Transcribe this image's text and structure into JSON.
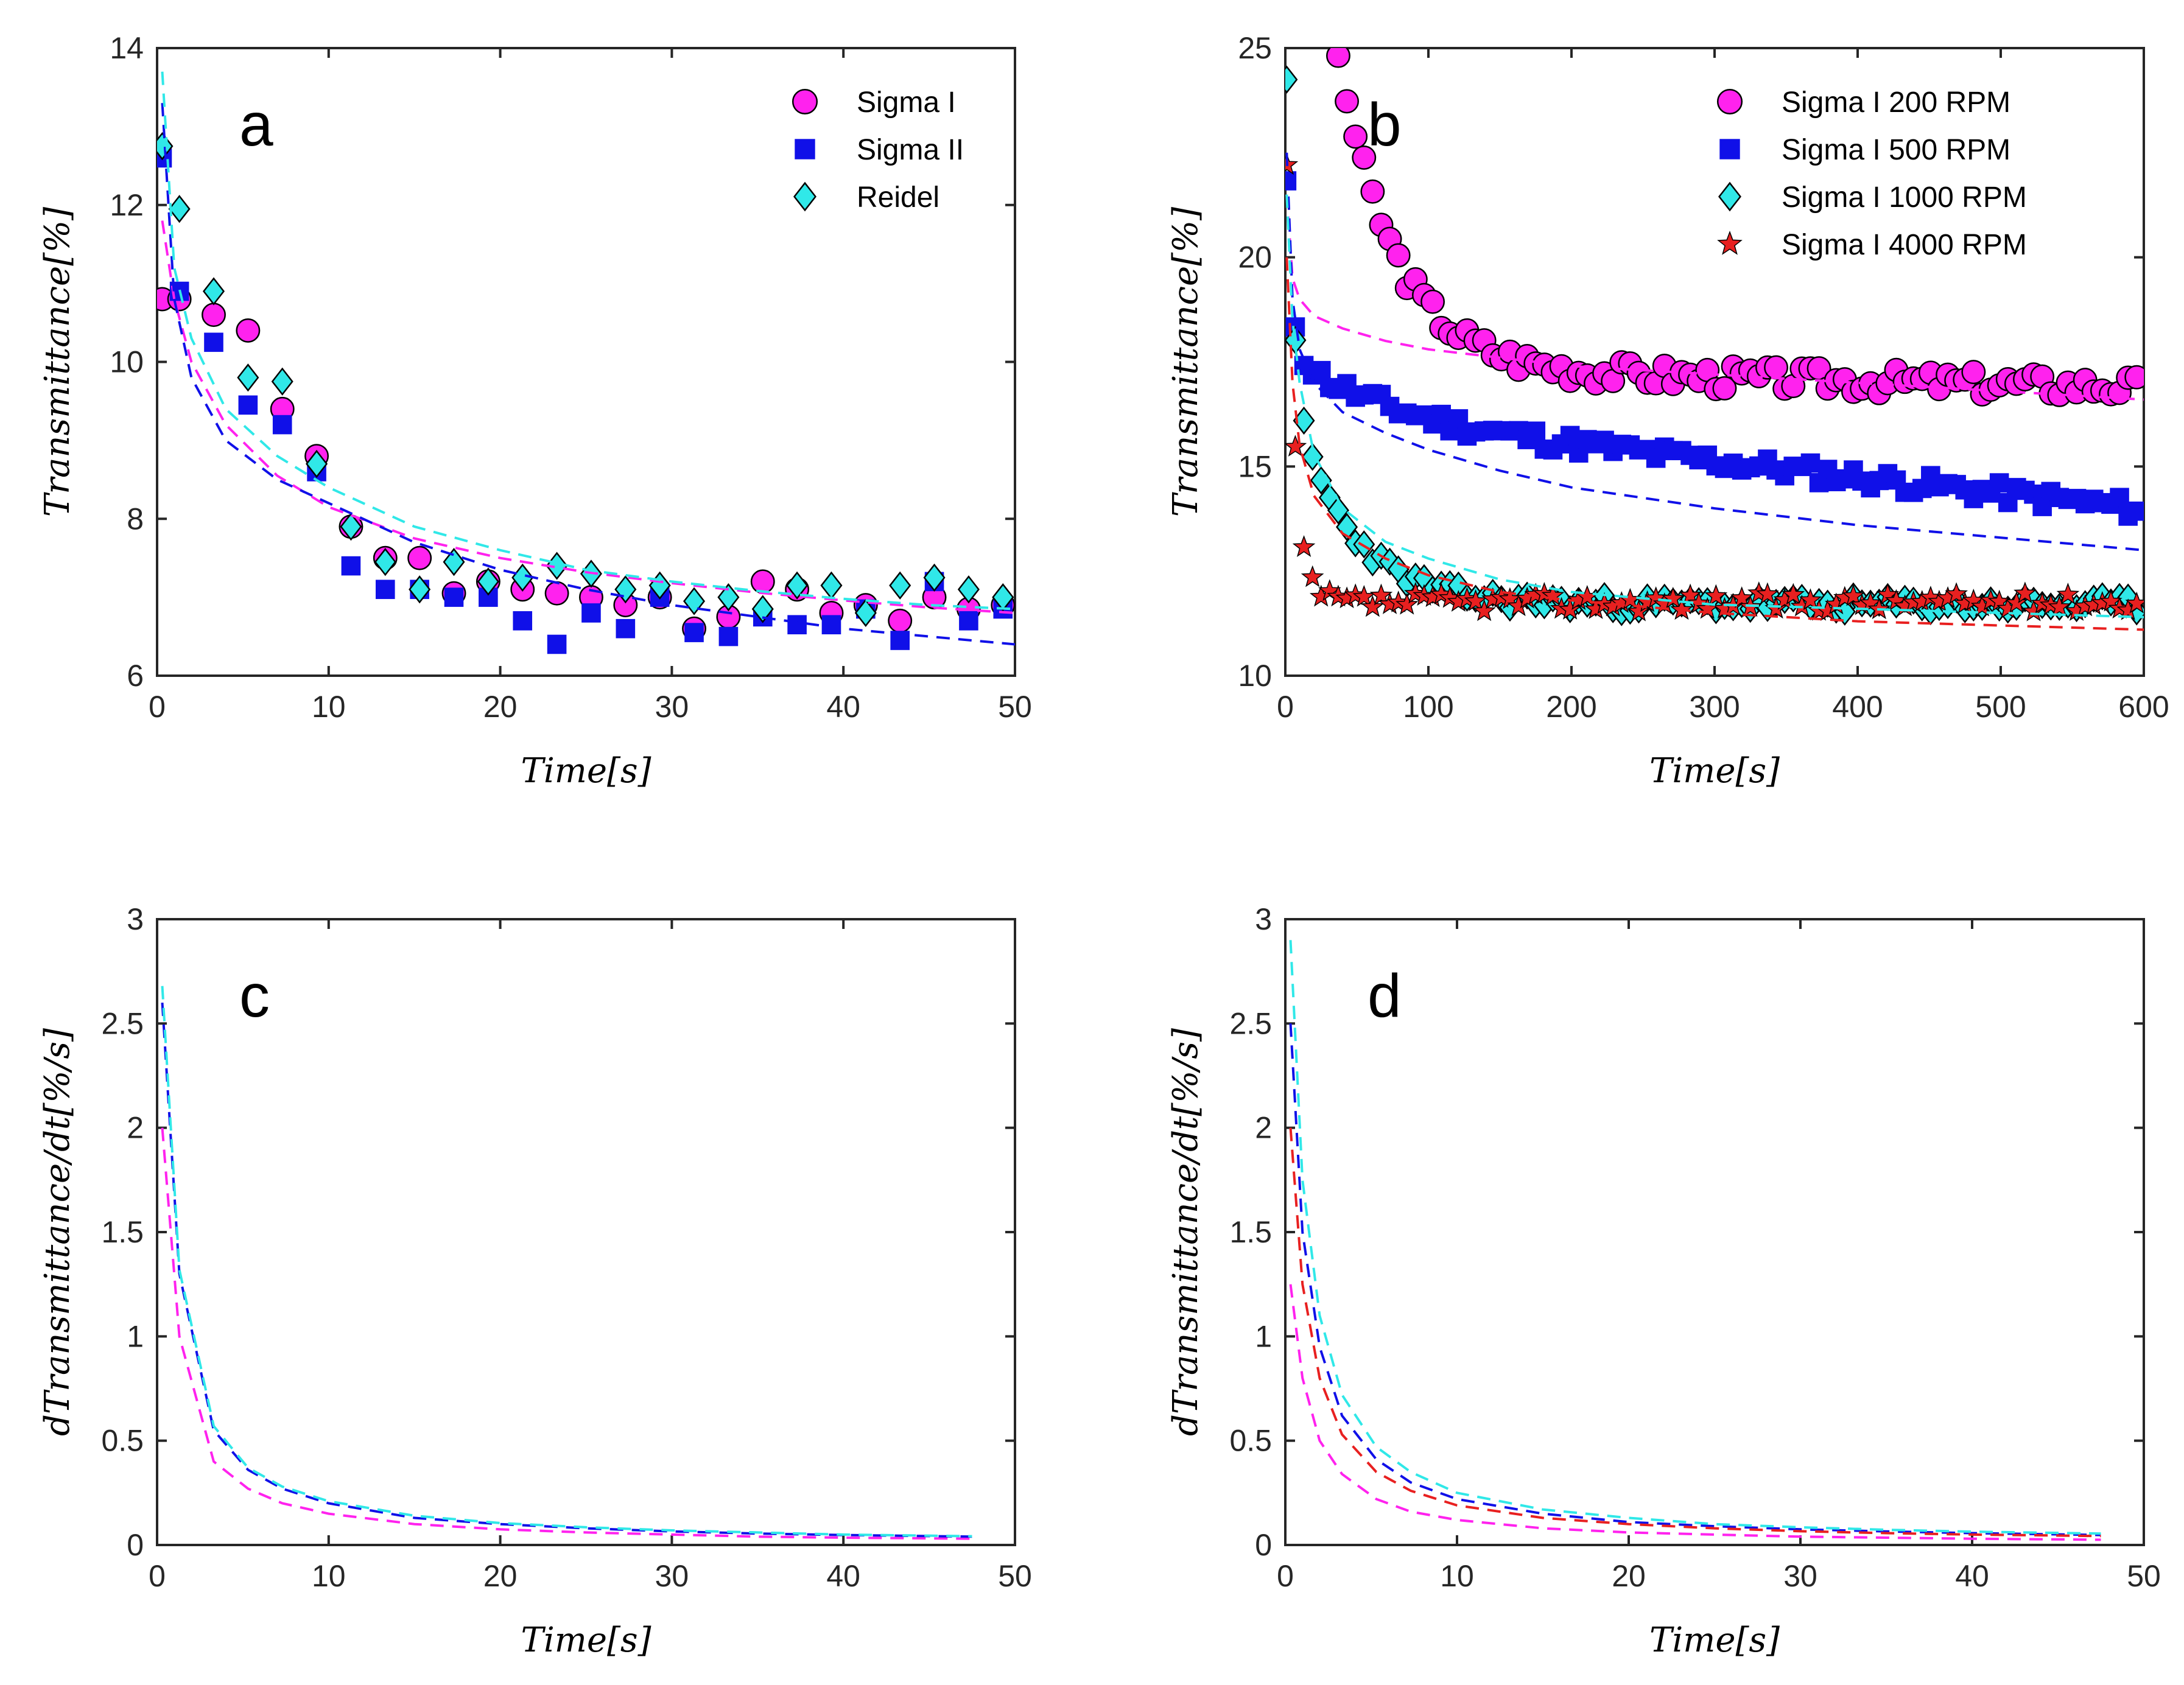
{
  "colors": {
    "magenta": "#ff22ee",
    "blue": "#1010e8",
    "cyan": "#30e8e8",
    "red": "#e82020",
    "axis": "#262626"
  },
  "chart_data": [
    {
      "panel": "a",
      "type": "scatter",
      "xlabel": "Time[s]",
      "ylabel": "Transmittance[%]",
      "xlim": [
        0,
        50
      ],
      "ylim": [
        6,
        14
      ],
      "xticks": [
        0,
        10,
        20,
        30,
        40,
        50
      ],
      "yticks": [
        6,
        8,
        10,
        12,
        14
      ],
      "legend_position": "top-right",
      "series": [
        {
          "name": "Sigma I",
          "marker": "circle",
          "color": "#ff22ee",
          "x": [
            0.3,
            1.3,
            3.3,
            5.3,
            7.3,
            9.3,
            11.3,
            13.3,
            15.3,
            17.3,
            19.3,
            21.3,
            23.3,
            25.3,
            27.3,
            29.3,
            31.3,
            33.3,
            35.3,
            37.3,
            39.3,
            41.3,
            43.3,
            45.3,
            47.3,
            49.3
          ],
          "y": [
            10.8,
            10.8,
            10.6,
            10.4,
            9.4,
            8.8,
            7.9,
            7.5,
            7.5,
            7.05,
            7.2,
            7.1,
            7.05,
            7.0,
            6.9,
            7.0,
            6.6,
            6.75,
            7.2,
            7.1,
            6.8,
            6.9,
            6.7,
            7.0,
            6.85,
            6.9
          ]
        },
        {
          "name": "Sigma II",
          "marker": "square",
          "color": "#1010e8",
          "x": [
            0.3,
            1.3,
            3.3,
            5.3,
            7.3,
            9.3,
            11.3,
            13.3,
            15.3,
            17.3,
            19.3,
            21.3,
            23.3,
            25.3,
            27.3,
            29.3,
            31.3,
            33.3,
            35.3,
            37.3,
            39.3,
            41.3,
            43.3,
            45.3,
            47.3,
            49.3
          ],
          "y": [
            12.6,
            10.9,
            10.25,
            9.45,
            9.2,
            8.6,
            7.4,
            7.1,
            7.1,
            7.0,
            7.0,
            6.7,
            6.4,
            6.8,
            6.6,
            7.0,
            6.55,
            6.5,
            6.75,
            6.65,
            6.65,
            6.85,
            6.45,
            7.2,
            6.7,
            6.85
          ]
        },
        {
          "name": "Reidel",
          "marker": "diamond",
          "color": "#30e8e8",
          "x": [
            0.3,
            1.3,
            3.3,
            5.3,
            7.3,
            9.3,
            11.3,
            13.3,
            15.3,
            17.3,
            19.3,
            21.3,
            23.3,
            25.3,
            27.3,
            29.3,
            31.3,
            33.3,
            35.3,
            37.3,
            39.3,
            41.3,
            43.3,
            45.3,
            47.3,
            49.3
          ],
          "y": [
            12.75,
            11.95,
            10.9,
            9.8,
            9.75,
            8.7,
            7.9,
            7.45,
            7.1,
            7.45,
            7.2,
            7.25,
            7.4,
            7.3,
            7.1,
            7.15,
            6.95,
            7.0,
            6.85,
            7.15,
            7.15,
            6.8,
            7.15,
            7.25,
            7.1,
            7.0
          ]
        }
      ],
      "fit_lines": [
        {
          "name": "Sigma I fit",
          "color": "#ff22ee",
          "x": [
            0.3,
            1,
            2,
            4,
            7,
            10,
            15,
            20,
            25,
            30,
            35,
            40,
            45,
            50
          ],
          "y": [
            11.8,
            10.8,
            10.0,
            9.2,
            8.55,
            8.15,
            7.75,
            7.5,
            7.32,
            7.18,
            7.06,
            6.96,
            6.87,
            6.8
          ]
        },
        {
          "name": "Sigma II fit",
          "color": "#1010e8",
          "x": [
            0.3,
            1,
            2,
            4,
            7,
            10,
            15,
            20,
            25,
            30,
            35,
            40,
            45,
            50
          ],
          "y": [
            13.3,
            10.8,
            9.8,
            9.0,
            8.5,
            8.2,
            7.7,
            7.35,
            7.1,
            6.9,
            6.75,
            6.6,
            6.5,
            6.4
          ]
        },
        {
          "name": "Reidel fit",
          "color": "#30e8e8",
          "x": [
            0.3,
            1,
            2,
            4,
            7,
            10,
            15,
            20,
            25,
            30,
            35,
            40,
            45,
            50
          ],
          "y": [
            13.7,
            11.2,
            10.3,
            9.4,
            8.8,
            8.4,
            7.9,
            7.6,
            7.35,
            7.2,
            7.08,
            6.98,
            6.9,
            6.85
          ]
        }
      ]
    },
    {
      "panel": "b",
      "type": "scatter",
      "xlabel": "Time[s]",
      "ylabel": "Transmittance[%]",
      "xlim": [
        0,
        600
      ],
      "ylim": [
        10,
        25
      ],
      "xticks": [
        0,
        100,
        200,
        300,
        400,
        500,
        600
      ],
      "yticks": [
        10,
        15,
        20,
        25
      ],
      "legend_position": "top-right",
      "series": [
        {
          "name": "Sigma I 200 RPM",
          "marker": "circle",
          "color": "#ff22ee",
          "model": {
            "base": 17.2,
            "slope": -0.00075,
            "amp": 3.5,
            "tau": 5,
            "mid": 19.0,
            "tau2": 40,
            "noise": 0.3,
            "seed": 3
          }
        },
        {
          "name": " Sigma I 500 RPM",
          "marker": "square",
          "color": "#1010e8",
          "model": {
            "base": 15.5,
            "slope": -0.0038,
            "amp": 5.0,
            "tau": 4,
            "mid": 1.5,
            "tau2": 60,
            "noise": 0.25,
            "seed": 11
          }
        },
        {
          "name": "Sigma I 1000 RPM",
          "marker": "diamond",
          "color": "#30e8e8",
          "model": {
            "base": 11.7,
            "slope": 0.0,
            "amp": 9.0,
            "tau": 4,
            "mid": 5.5,
            "tau2": 40,
            "noise": 0.2,
            "seed": 23
          }
        },
        {
          "name": "Sigma I 4000 RPM",
          "marker": "star",
          "color": "#e82020",
          "model": {
            "base": 11.75,
            "slope": 0.0,
            "amp": 10.0,
            "tau": 5,
            "mid": 2.5,
            "tau2": 8,
            "noise": 0.22,
            "seed": 37
          }
        }
      ],
      "fit_lines": [
        {
          "name": "200 RPM fit",
          "color": "#ff22ee",
          "x": [
            1,
            5,
            10,
            20,
            40,
            70,
            100,
            150,
            200,
            300,
            400,
            500,
            600
          ],
          "y": [
            21.5,
            19.5,
            19.0,
            18.6,
            18.3,
            18.0,
            17.8,
            17.6,
            17.4,
            17.2,
            17.0,
            16.8,
            16.6
          ]
        },
        {
          "name": "500 RPM fit",
          "color": "#1010e8",
          "x": [
            1,
            5,
            10,
            20,
            40,
            70,
            100,
            150,
            200,
            300,
            400,
            500,
            600
          ],
          "y": [
            22.5,
            19.0,
            17.8,
            17.0,
            16.3,
            15.8,
            15.4,
            14.9,
            14.5,
            14.0,
            13.6,
            13.3,
            13.0
          ]
        },
        {
          "name": "1000 RPM fit",
          "color": "#30e8e8",
          "x": [
            1,
            5,
            10,
            20,
            40,
            70,
            100,
            150,
            200,
            300,
            400,
            500,
            600
          ],
          "y": [
            21.5,
            18.5,
            17.0,
            15.3,
            14.0,
            13.2,
            12.8,
            12.3,
            12.0,
            11.7,
            11.6,
            11.5,
            11.4
          ]
        },
        {
          "name": "4000 RPM fit",
          "color": "#e82020",
          "x": [
            1,
            5,
            10,
            20,
            40,
            70,
            100,
            150,
            200,
            300,
            400,
            500,
            600
          ],
          "y": [
            20.0,
            17.0,
            15.5,
            14.3,
            13.4,
            12.8,
            12.4,
            12.0,
            11.8,
            11.5,
            11.3,
            11.2,
            11.1
          ]
        }
      ]
    },
    {
      "panel": "c",
      "type": "line",
      "xlabel": "Time[s]",
      "ylabel": "dTransmittance/dt[%/s]",
      "xlim": [
        0,
        50
      ],
      "ylim": [
        0,
        3
      ],
      "xticks": [
        0,
        10,
        20,
        30,
        40,
        50
      ],
      "yticks": [
        0,
        0.5,
        1,
        1.5,
        2,
        2.5,
        3
      ],
      "series": [
        {
          "name": "Sigma I",
          "color": "#ff22ee",
          "x": [
            0.3,
            1.3,
            3.3,
            5.3,
            7.3,
            10,
            15,
            20,
            25,
            30,
            35,
            40,
            47.5
          ],
          "y": [
            2.0,
            1.0,
            0.4,
            0.27,
            0.2,
            0.15,
            0.1,
            0.075,
            0.06,
            0.05,
            0.04,
            0.035,
            0.03
          ]
        },
        {
          "name": "Sigma II",
          "color": "#1010e8",
          "x": [
            0.3,
            1.3,
            3.3,
            5.3,
            7.3,
            10,
            15,
            20,
            25,
            30,
            35,
            40,
            47.5
          ],
          "y": [
            2.6,
            1.3,
            0.55,
            0.36,
            0.27,
            0.2,
            0.13,
            0.1,
            0.08,
            0.065,
            0.055,
            0.048,
            0.04
          ]
        },
        {
          "name": "Reidel",
          "color": "#30e8e8",
          "x": [
            0.3,
            1.3,
            3.3,
            5.3,
            7.3,
            10,
            15,
            20,
            25,
            30,
            35,
            40,
            47.5
          ],
          "y": [
            2.68,
            1.32,
            0.57,
            0.37,
            0.28,
            0.21,
            0.14,
            0.105,
            0.085,
            0.07,
            0.06,
            0.05,
            0.042
          ]
        }
      ]
    },
    {
      "panel": "d",
      "type": "line",
      "xlabel": "Time[s]",
      "ylabel": "dTransmittance/dt[%/s]",
      "xlim": [
        0,
        50
      ],
      "ylim": [
        0,
        3
      ],
      "xticks": [
        0,
        10,
        20,
        30,
        40,
        50
      ],
      "yticks": [
        0,
        0.5,
        1,
        1.5,
        2,
        2.5,
        3
      ],
      "series": [
        {
          "name": "Sigma I 200 RPM",
          "color": "#ff22ee",
          "x": [
            0.3,
            1,
            2,
            3.3,
            5.3,
            7.3,
            10,
            15,
            20,
            25,
            30,
            35,
            40,
            47.5
          ],
          "y": [
            1.25,
            0.8,
            0.5,
            0.34,
            0.22,
            0.16,
            0.12,
            0.08,
            0.06,
            0.05,
            0.04,
            0.035,
            0.03,
            0.025
          ]
        },
        {
          "name": " Sigma I 500 RPM",
          "color": "#1010e8",
          "x": [
            0.3,
            1,
            2,
            3.3,
            5.3,
            7.3,
            10,
            15,
            20,
            25,
            30,
            35,
            40,
            47.5
          ],
          "y": [
            2.5,
            1.5,
            0.95,
            0.62,
            0.41,
            0.3,
            0.22,
            0.15,
            0.11,
            0.09,
            0.075,
            0.065,
            0.057,
            0.048
          ]
        },
        {
          "name": "Sigma I 1000 RPM",
          "color": "#30e8e8",
          "x": [
            0.3,
            1,
            2,
            3.3,
            5.3,
            7.3,
            10,
            15,
            20,
            25,
            30,
            35,
            40,
            47.5
          ],
          "y": [
            2.9,
            1.75,
            1.1,
            0.72,
            0.47,
            0.35,
            0.25,
            0.17,
            0.13,
            0.1,
            0.085,
            0.073,
            0.064,
            0.055
          ]
        },
        {
          "name": "Sigma I 4000 RPM",
          "color": "#e82020",
          "x": [
            0.3,
            1,
            2,
            3.3,
            5.3,
            7.3,
            10,
            15,
            20,
            25,
            30,
            35,
            40,
            47.5
          ],
          "y": [
            2.0,
            1.25,
            0.8,
            0.53,
            0.35,
            0.26,
            0.19,
            0.13,
            0.1,
            0.08,
            0.066,
            0.057,
            0.05,
            0.043
          ]
        }
      ]
    }
  ]
}
